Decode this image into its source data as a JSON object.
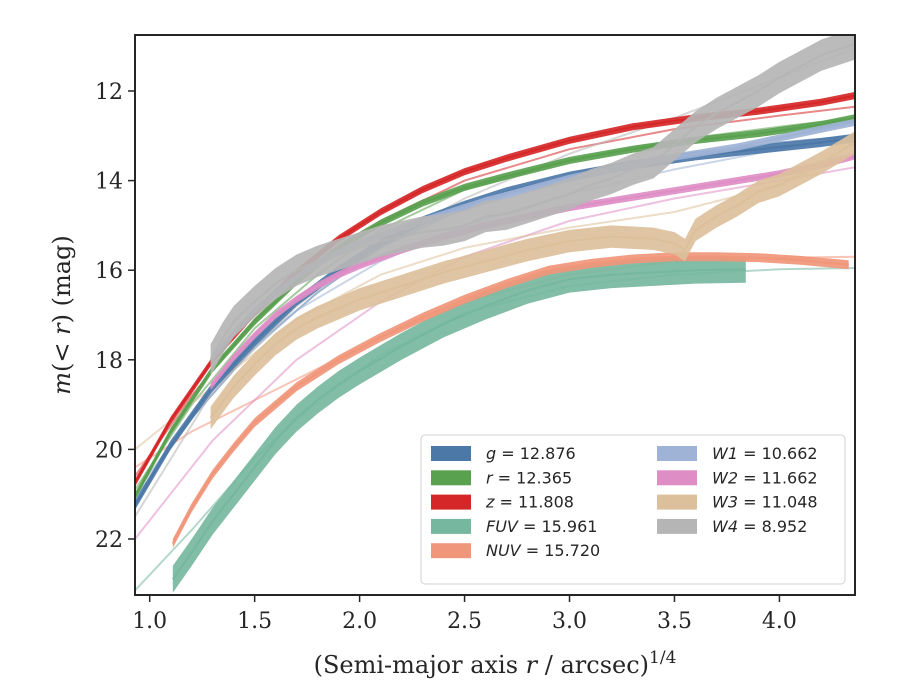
{
  "chart_data": {
    "type": "line",
    "xlabel": "(Semi-major axis r / arcsec)^1/4",
    "ylabel": "m(< r) (mag)",
    "xlim": [
      0.93,
      4.36
    ],
    "ylim": [
      23.25,
      10.75
    ],
    "y_inverted": true,
    "x_ticks": [
      1.0,
      1.5,
      2.0,
      2.5,
      3.0,
      3.5,
      4.0
    ],
    "x_tick_labels": [
      "1.0",
      "1.5",
      "2.0",
      "2.5",
      "3.0",
      "3.5",
      "4.0"
    ],
    "y_ticks": [
      12,
      14,
      16,
      18,
      20,
      22
    ],
    "y_tick_labels": [
      "12",
      "14",
      "16",
      "18",
      "20",
      "22"
    ],
    "legend": {
      "placement": "lower-right",
      "columns": 2
    },
    "series": [
      {
        "name": "g = 12.876",
        "var": "g",
        "val": "= 12.876",
        "color": "#4c78a8",
        "x": [
          0.93,
          1.1,
          1.3,
          1.5,
          1.7,
          1.9,
          2.1,
          2.3,
          2.5,
          2.7,
          3.0,
          3.3,
          3.6,
          3.9,
          4.2,
          4.36
        ],
        "y": [
          21.25,
          19.9,
          18.6,
          17.6,
          16.7,
          16.0,
          15.4,
          14.9,
          14.55,
          14.25,
          13.9,
          13.65,
          13.45,
          13.3,
          13.15,
          13.05
        ],
        "band": 0.1,
        "model_x": [
          0.93,
          1.2,
          1.5,
          1.8,
          2.1,
          2.5,
          3.0,
          3.5,
          4.0,
          4.36
        ],
        "model_y": [
          21.1,
          19.3,
          17.7,
          16.5,
          15.5,
          14.6,
          13.9,
          13.45,
          13.15,
          13.0
        ]
      },
      {
        "name": "r = 12.365",
        "var": "r",
        "val": "= 12.365",
        "color": "#59a14f",
        "x": [
          0.93,
          1.1,
          1.3,
          1.5,
          1.7,
          1.9,
          2.1,
          2.3,
          2.5,
          2.7,
          3.0,
          3.3,
          3.6,
          3.9,
          4.2,
          4.36
        ],
        "y": [
          21.05,
          19.6,
          18.2,
          17.15,
          16.25,
          15.5,
          14.95,
          14.5,
          14.15,
          13.9,
          13.55,
          13.3,
          13.1,
          12.95,
          12.75,
          12.6
        ],
        "band": 0.08,
        "model_x": [
          0.93,
          1.2,
          1.5,
          1.8,
          2.1,
          2.5,
          3.0,
          3.5,
          4.0,
          4.36
        ],
        "model_y": [
          20.9,
          19.0,
          17.3,
          16.1,
          15.1,
          14.2,
          13.55,
          13.1,
          12.8,
          12.6
        ]
      },
      {
        "name": "z = 11.808",
        "var": "z",
        "val": "= 11.808",
        "color": "#d62728",
        "x": [
          0.93,
          1.1,
          1.3,
          1.5,
          1.7,
          1.9,
          2.1,
          2.3,
          2.5,
          2.7,
          3.0,
          3.3,
          3.6,
          3.9,
          4.2,
          4.36
        ],
        "y": [
          20.75,
          19.35,
          18.0,
          16.95,
          16.05,
          15.3,
          14.7,
          14.2,
          13.8,
          13.5,
          13.1,
          12.8,
          12.6,
          12.45,
          12.25,
          12.1
        ],
        "band": 0.08,
        "model_x": [
          0.93,
          1.2,
          1.5,
          1.8,
          2.1,
          2.5,
          3.0,
          3.5,
          4.0,
          4.36
        ],
        "model_y": [
          20.6,
          18.8,
          17.1,
          15.9,
          14.9,
          14.0,
          13.3,
          12.85,
          12.55,
          12.35
        ]
      },
      {
        "name": "FUV = 15.961",
        "var": "FUV",
        "val": "= 15.961",
        "color": "#76b7a0",
        "x": [
          1.11,
          1.2,
          1.3,
          1.4,
          1.5,
          1.6,
          1.7,
          1.8,
          1.9,
          2.0,
          2.2,
          2.4,
          2.6,
          2.8,
          3.0,
          3.2,
          3.4,
          3.6,
          3.84
        ],
        "y": [
          22.9,
          22.3,
          21.6,
          21.0,
          20.4,
          19.8,
          19.3,
          18.9,
          18.55,
          18.25,
          17.7,
          17.2,
          16.8,
          16.45,
          16.2,
          16.1,
          16.05,
          16.0,
          15.98
        ],
        "band": 0.3,
        "model_x": [
          0.93,
          1.2,
          1.5,
          1.8,
          2.1,
          2.5,
          3.0,
          3.5,
          4.0,
          4.36
        ],
        "model_y": [
          23.15,
          21.8,
          20.2,
          18.9,
          17.9,
          16.95,
          16.35,
          16.1,
          15.98,
          15.95
        ]
      },
      {
        "name": "NUV = 15.720",
        "var": "NUV",
        "val": "= 15.720",
        "color": "#f0967a",
        "x": [
          1.11,
          1.2,
          1.3,
          1.4,
          1.5,
          1.7,
          1.9,
          2.1,
          2.3,
          2.5,
          2.7,
          2.9,
          3.1,
          3.3,
          3.5,
          3.7,
          3.9,
          4.1,
          4.33
        ],
        "y": [
          22.1,
          21.3,
          20.55,
          19.95,
          19.4,
          18.6,
          18.0,
          17.5,
          17.05,
          16.65,
          16.3,
          16.0,
          15.85,
          15.75,
          15.7,
          15.7,
          15.72,
          15.78,
          15.88
        ],
        "band": 0.1,
        "model_x": [
          0.93,
          1.2,
          1.5,
          1.8,
          2.1,
          2.5,
          3.0,
          3.5,
          4.0,
          4.36
        ],
        "model_y": [
          20.4,
          19.6,
          18.9,
          18.2,
          17.5,
          16.7,
          16.1,
          15.8,
          15.72,
          15.7
        ]
      },
      {
        "name": "W1 = 10.662",
        "var": "W1",
        "val": "= 10.662",
        "color": "#9fb3d6",
        "x": [
          1.29,
          1.4,
          1.5,
          1.6,
          1.7,
          1.8,
          1.9,
          2.0,
          2.2,
          2.4,
          2.6,
          2.8,
          3.0,
          3.2,
          3.4,
          3.6,
          3.8,
          4.0,
          4.2,
          4.36
        ],
        "y": [
          18.0,
          17.4,
          16.9,
          16.5,
          16.15,
          15.85,
          15.6,
          15.4,
          15.05,
          14.75,
          14.45,
          14.2,
          13.95,
          13.75,
          13.55,
          13.4,
          13.25,
          13.05,
          12.85,
          12.7
        ],
        "band": 0.08,
        "model_x": [
          0.93,
          1.3,
          1.7,
          2.1,
          2.5,
          3.0,
          3.5,
          4.0,
          4.36
        ],
        "model_y": [
          21.0,
          18.6,
          16.9,
          15.8,
          15.0,
          14.3,
          13.75,
          13.3,
          13.0
        ]
      },
      {
        "name": "W2 = 11.662",
        "var": "W2",
        "val": "= 11.662",
        "color": "#de8ec5",
        "x": [
          1.29,
          1.4,
          1.5,
          1.6,
          1.7,
          1.8,
          1.9,
          2.0,
          2.2,
          2.4,
          2.6,
          2.8,
          3.0,
          3.2,
          3.4,
          3.6,
          3.8,
          4.0,
          4.2,
          4.36
        ],
        "y": [
          18.6,
          17.95,
          17.45,
          17.0,
          16.65,
          16.35,
          16.1,
          15.9,
          15.55,
          15.25,
          15.0,
          14.8,
          14.6,
          14.45,
          14.3,
          14.15,
          14.0,
          13.85,
          13.65,
          13.45
        ],
        "band": 0.08,
        "model_x": [
          0.93,
          1.3,
          1.7,
          2.1,
          2.5,
          3.0,
          3.5,
          4.0,
          4.36
        ],
        "model_y": [
          22.0,
          19.8,
          18.0,
          16.7,
          15.7,
          14.9,
          14.4,
          14.0,
          13.7
        ]
      },
      {
        "name": "W3 = 11.048",
        "var": "W3",
        "val": "= 11.048",
        "color": "#dcc09b",
        "x": [
          1.29,
          1.4,
          1.5,
          1.6,
          1.7,
          1.8,
          1.9,
          2.0,
          2.2,
          2.4,
          2.6,
          2.8,
          3.0,
          3.2,
          3.4,
          3.5,
          3.55,
          3.6,
          3.7,
          3.8,
          3.9,
          4.0,
          4.1,
          4.2,
          4.36
        ],
        "y": [
          19.3,
          18.6,
          18.1,
          17.65,
          17.3,
          17.05,
          16.85,
          16.65,
          16.35,
          16.05,
          15.8,
          15.55,
          15.35,
          15.25,
          15.3,
          15.4,
          15.55,
          15.1,
          14.8,
          14.55,
          14.25,
          14.1,
          13.85,
          13.6,
          13.15
        ],
        "band": 0.25,
        "model_x": [
          0.93,
          1.3,
          1.7,
          2.1,
          2.5,
          3.0,
          3.5,
          4.0,
          4.36
        ],
        "model_y": [
          20.0,
          18.6,
          17.1,
          16.1,
          15.5,
          15.05,
          14.7,
          14.1,
          13.4
        ]
      },
      {
        "name": "W4 = 8.952",
        "var": "W4",
        "val": "= 8.952",
        "color": "#b5b5b5",
        "x": [
          1.29,
          1.35,
          1.4,
          1.5,
          1.6,
          1.7,
          1.8,
          1.9,
          2.0,
          2.1,
          2.2,
          2.3,
          2.4,
          2.5,
          2.6,
          2.7,
          2.8,
          2.9,
          3.0,
          3.1,
          3.2,
          3.3,
          3.4,
          3.5,
          3.6,
          3.7,
          3.8,
          3.9,
          4.0,
          4.1,
          4.2,
          4.36
        ],
        "y": [
          18.0,
          17.5,
          17.15,
          16.7,
          16.3,
          16.0,
          15.8,
          15.65,
          15.5,
          15.35,
          15.25,
          15.15,
          15.1,
          15.0,
          14.8,
          14.75,
          14.6,
          14.45,
          14.3,
          14.1,
          13.95,
          13.75,
          13.6,
          13.2,
          12.8,
          12.5,
          12.25,
          12.0,
          11.7,
          11.45,
          11.2,
          10.95
        ],
        "band": 0.35,
        "model_x": [
          0.93,
          1.3,
          1.7,
          2.1,
          2.5,
          3.0,
          3.5,
          4.0,
          4.36
        ],
        "model_y": [
          21.5,
          18.7,
          16.8,
          15.4,
          14.4,
          13.4,
          12.6,
          11.7,
          11.05
        ]
      }
    ]
  }
}
